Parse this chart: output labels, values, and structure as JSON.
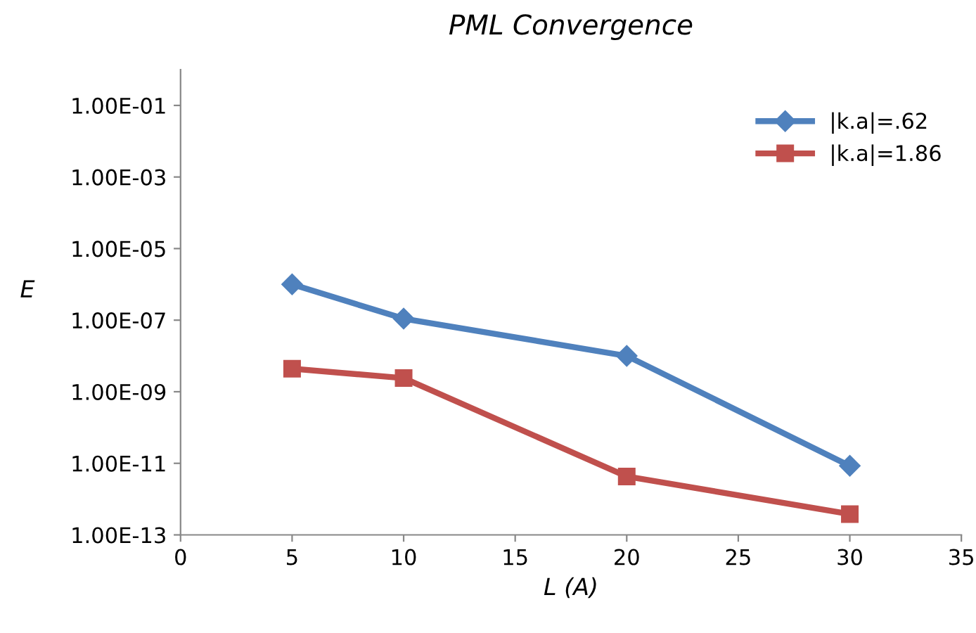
{
  "chart_data": {
    "type": "line",
    "title": "PML Convergence",
    "xlabel": "L (A)",
    "ylabel": "E",
    "log": "y",
    "x": [
      5,
      10,
      20,
      30
    ],
    "series": [
      {
        "name": "|k.a|=.62",
        "color": "#4f81bd",
        "marker": "diamond",
        "values": [
          1e-06,
          1.1e-07,
          1e-08,
          8.5e-12
        ]
      },
      {
        "name": "|k.a|=1.86",
        "color": "#c0504d",
        "marker": "square",
        "values": [
          4.4e-09,
          2.4e-09,
          4.3e-12,
          3.8e-13
        ]
      }
    ],
    "xlim": [
      0,
      35
    ],
    "xticks": [
      0,
      5,
      10,
      15,
      20,
      25,
      30,
      35
    ],
    "ylim": [
      1e-13,
      1
    ],
    "yticks": [
      {
        "value": 1e-13,
        "label": "1.00E-13"
      },
      {
        "value": 1e-11,
        "label": "1.00E-11"
      },
      {
        "value": 1e-09,
        "label": "1.00E-09"
      },
      {
        "value": 1e-07,
        "label": "1.00E-07"
      },
      {
        "value": 1e-05,
        "label": "1.00E-05"
      },
      {
        "value": 0.001,
        "label": "1.00E-03"
      },
      {
        "value": 0.1,
        "label": "1.00E-01"
      }
    ],
    "grid": false,
    "legend": "top right",
    "line_style": "solid"
  }
}
